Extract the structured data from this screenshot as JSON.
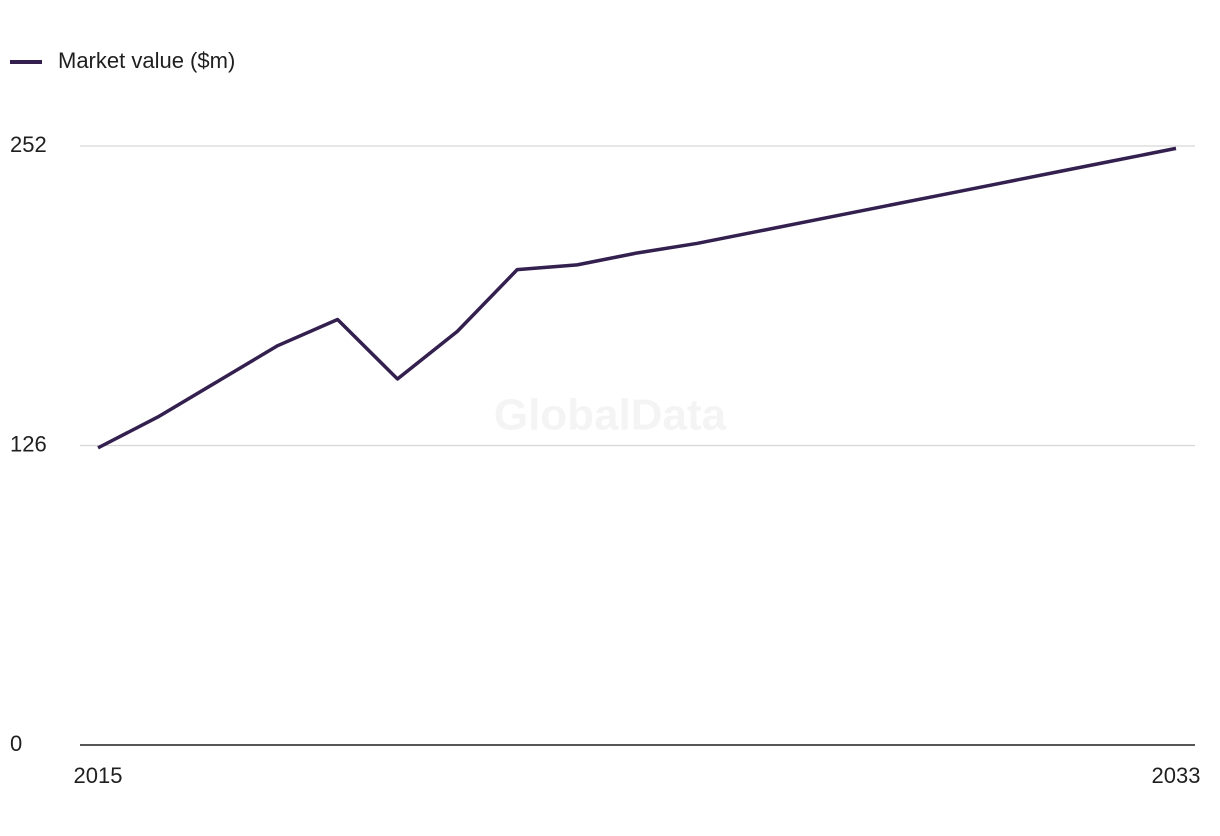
{
  "chart_data": {
    "type": "line",
    "watermark": "GlobalData",
    "x": [
      2015,
      2016,
      2017,
      2018,
      2019,
      2020,
      2021,
      2022,
      2023,
      2024,
      2025,
      2026,
      2027,
      2028,
      2029,
      2030,
      2031,
      2032,
      2033
    ],
    "series": [
      {
        "name": "Market value ($m)",
        "color": "#33204f",
        "values": [
          125,
          138,
          153,
          168,
          179,
          154,
          174,
          200,
          202,
          207,
          211,
          216,
          221,
          226,
          231,
          236,
          241,
          246,
          251
        ]
      }
    ],
    "xlim": [
      2015,
      2033
    ],
    "xticks": [
      2015,
      2033
    ],
    "ylim": [
      0,
      252
    ],
    "yticks": [
      0,
      126,
      252
    ],
    "grid": true
  }
}
